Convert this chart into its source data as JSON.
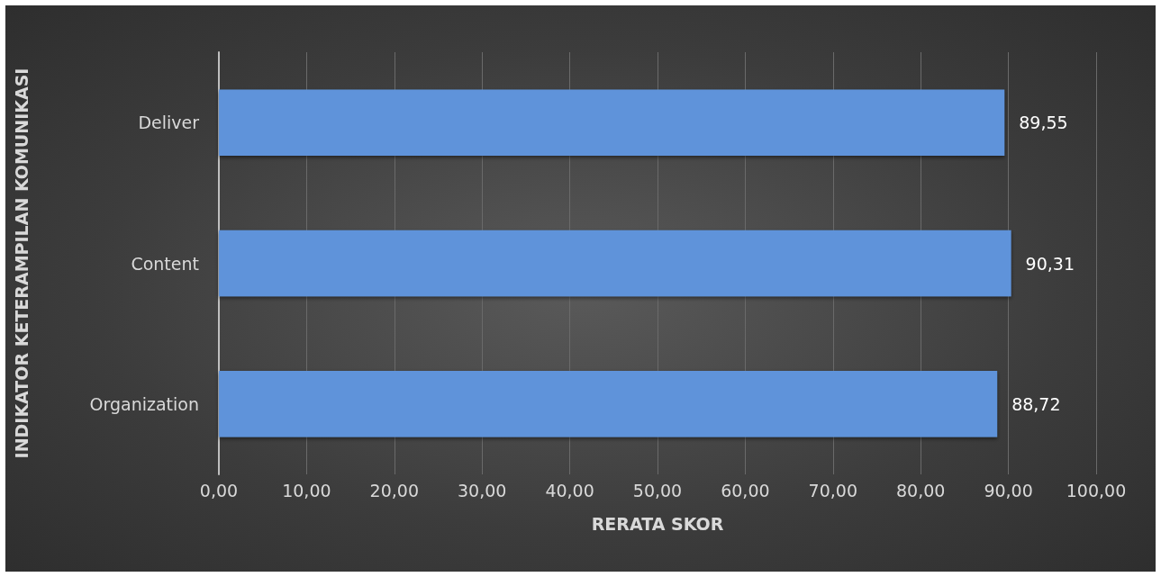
{
  "chart_data": {
    "type": "bar",
    "orientation": "horizontal",
    "xlabel": "RERATA SKOR",
    "ylabel": "INDIKATOR KETERAMPILAN KOMUNIKASI",
    "categories": [
      "Deliver",
      "Content",
      "Organization"
    ],
    "values": [
      89.55,
      90.31,
      88.72
    ],
    "value_labels": [
      "89,55",
      "90,31",
      "88,72"
    ],
    "color": "#5f93da",
    "xlim": [
      0,
      100
    ],
    "xticks": [
      {
        "value": 0,
        "label": "0,00"
      },
      {
        "value": 10,
        "label": "10,00"
      },
      {
        "value": 20,
        "label": "20,00"
      },
      {
        "value": 30,
        "label": "30,00"
      },
      {
        "value": 40,
        "label": "40,00"
      },
      {
        "value": 50,
        "label": "50,00"
      },
      {
        "value": 60,
        "label": "60,00"
      },
      {
        "value": 70,
        "label": "70,00"
      },
      {
        "value": 80,
        "label": "80,00"
      },
      {
        "value": 90,
        "label": "90,00"
      },
      {
        "value": 100,
        "label": "100,00"
      }
    ],
    "grid": "x"
  }
}
